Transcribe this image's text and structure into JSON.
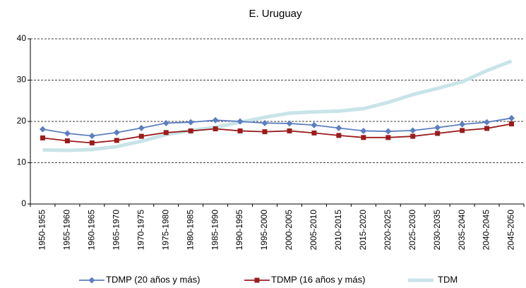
{
  "chart_data": {
    "type": "line",
    "title": "E. Uruguay",
    "categories": [
      "1950-1955",
      "1955-1960",
      "1960-1965",
      "1965-1970",
      "1970-1975",
      "1975-1980",
      "1980-1985",
      "1985-1990",
      "1990-1995",
      "1995-2000",
      "2000-2005",
      "2005-2010",
      "2010-2015",
      "2015-2020",
      "2020-2025",
      "2025-2030",
      "2030-2035",
      "2035-2040",
      "2040-2045",
      "2045-2050"
    ],
    "series": [
      {
        "name": "TDMP (20 años y más)",
        "color": "#5b7fc0",
        "marker": "diamond",
        "values": [
          18.1,
          17.1,
          16.5,
          17.3,
          18.4,
          19.6,
          19.8,
          20.3,
          20.0,
          19.6,
          19.5,
          19.1,
          18.4,
          17.7,
          17.6,
          17.8,
          18.5,
          19.3,
          19.8,
          20.8
        ]
      },
      {
        "name": "TDMP (16 años y más)",
        "color": "#9b1c1c",
        "marker": "square",
        "values": [
          16.0,
          15.3,
          14.8,
          15.4,
          16.4,
          17.3,
          17.7,
          18.2,
          17.7,
          17.5,
          17.7,
          17.2,
          16.6,
          16.1,
          16.1,
          16.4,
          17.1,
          17.8,
          18.3,
          19.4
        ]
      },
      {
        "name": "TDM",
        "color": "#c8e4e8",
        "marker": "none",
        "values": [
          13.1,
          13.0,
          13.2,
          13.9,
          15.2,
          16.8,
          17.8,
          18.6,
          19.8,
          21.0,
          22.0,
          22.3,
          22.5,
          23.1,
          24.6,
          26.5,
          28.0,
          29.6,
          32.3,
          34.6
        ]
      }
    ],
    "ylim": [
      0,
      40
    ],
    "yticks": [
      0,
      10,
      20,
      30,
      40
    ],
    "grid": true,
    "legend": "bottom"
  }
}
